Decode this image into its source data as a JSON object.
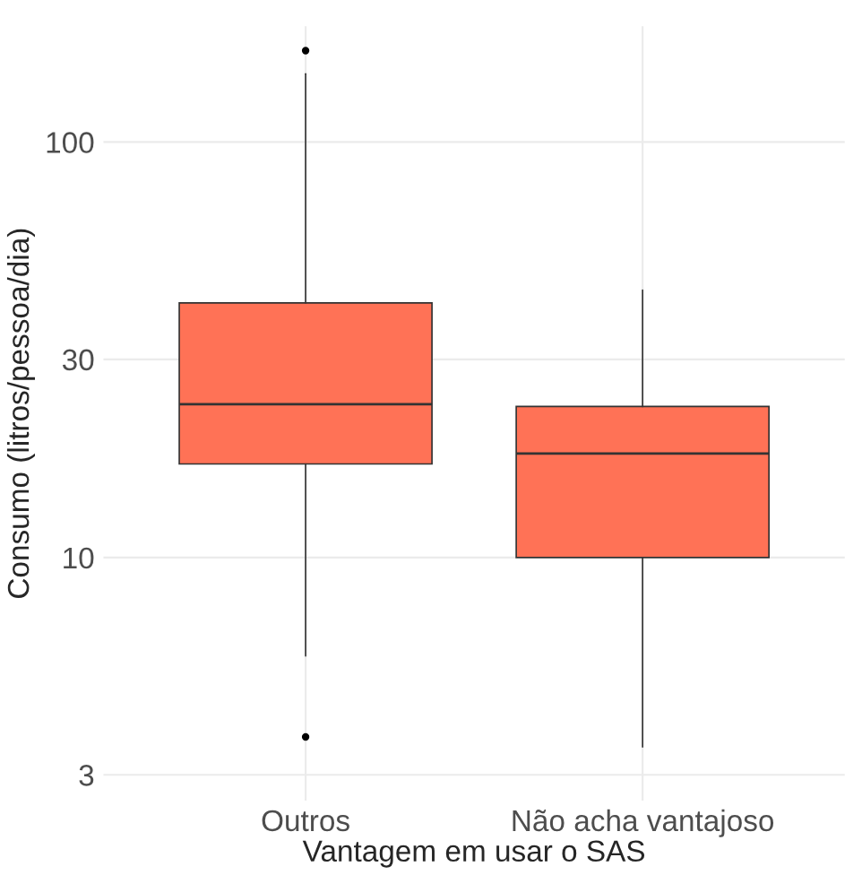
{
  "chart_data": {
    "type": "box",
    "xlabel": "Vantagem em usar o SAS",
    "ylabel": "Consumo (litros/pessoa/dia)",
    "categories": [
      "Outros",
      "Não acha vantajoso"
    ],
    "boxes": [
      {
        "low": 5.8,
        "q1": 16.8,
        "median": 23.4,
        "q3": 41,
        "high": 146,
        "outliers": [
          3.7,
          166
        ]
      },
      {
        "low": 3.5,
        "q1": 10,
        "median": 17.8,
        "q3": 23.1,
        "high": 44
      }
    ],
    "color": "#ff7256",
    "log": true,
    "ylim": [
      2.6,
      190
    ],
    "yticks": [
      3,
      10,
      30,
      100
    ],
    "grid": true,
    "legend": false
  }
}
